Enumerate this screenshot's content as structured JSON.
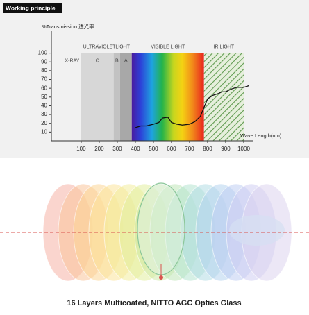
{
  "badge": "Working principle",
  "caption": "16 Layers Multicoated, NITTO AGC Optics Glass",
  "chart_data": {
    "type": "line",
    "y_label": "%Transmission 透光率",
    "x_label": "Wave Length(nm)",
    "group_label": "ULTRAVIOLETLIGHT",
    "xlim": [
      -65,
      1050
    ],
    "ylim": [
      0,
      125
    ],
    "xticks": [
      100,
      200,
      300,
      400,
      500,
      600,
      700,
      800,
      900,
      1000
    ],
    "yticks": [
      10,
      20,
      30,
      40,
      50,
      60,
      70,
      80,
      90,
      100
    ],
    "region_top": 100,
    "regions": [
      {
        "name": "X-RAY",
        "start": 0,
        "end": 100,
        "label_position": "inside"
      },
      {
        "name": "C",
        "start": 100,
        "end": 280,
        "color": "#d7d7d7",
        "label_position": "inside",
        "group": true
      },
      {
        "name": "B",
        "start": 280,
        "end": 315,
        "color": "#c2c2c2",
        "label_position": "inside",
        "group": true
      },
      {
        "name": "A",
        "start": 315,
        "end": 380,
        "color": "#a8a8a8",
        "label_position": "inside",
        "group": true
      },
      {
        "name": "VISIBLE LIGHT",
        "start": 380,
        "end": 780,
        "fill": "spectrum",
        "label_position": "above"
      },
      {
        "name": "IR LIGHT",
        "start": 780,
        "end": 1000,
        "fill": "hatch",
        "label_position": "above"
      }
    ],
    "series": [
      {
        "color": "#111111",
        "x": [
          400,
          430,
          460,
          500,
          530,
          550,
          580,
          600,
          630,
          660,
          700,
          730,
          760,
          780,
          800,
          830,
          860,
          880,
          900,
          930,
          960,
          1000,
          1030
        ],
        "values": [
          15,
          17,
          17,
          19,
          21,
          26,
          27,
          21,
          19,
          18,
          19,
          22,
          28,
          38,
          48,
          52,
          54,
          56,
          56,
          59,
          61,
          61,
          63
        ]
      }
    ]
  }
}
